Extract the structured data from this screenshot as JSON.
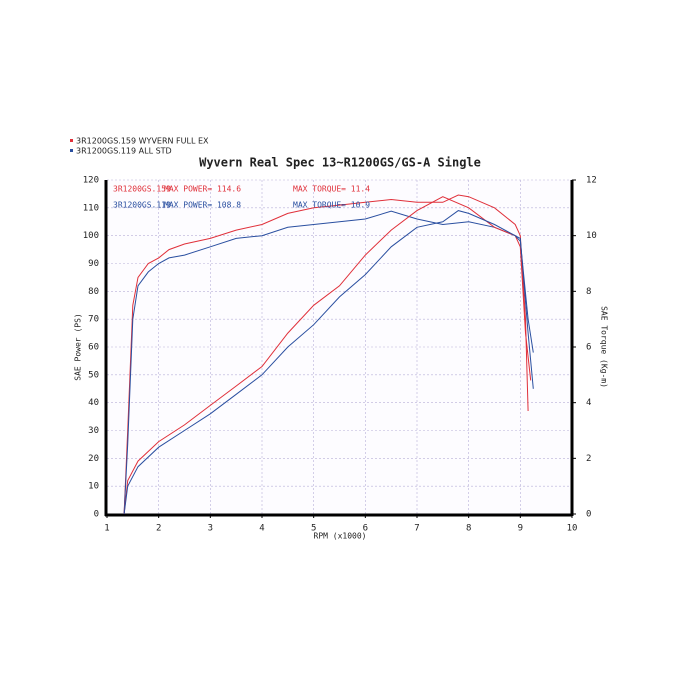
{
  "chart_data": {
    "type": "line",
    "title": "Wyvern Real Spec  13~R1200GS/GS-A  Single",
    "x_label": "RPM (x1000)",
    "y_label": "SAE Power (PS)",
    "y2_label": "SAE Torque (Kg-m)",
    "xlim": [
      1,
      10
    ],
    "xticks": [
      1,
      2,
      3,
      4,
      5,
      6,
      7,
      8,
      9,
      10
    ],
    "ylim": [
      0,
      120
    ],
    "yticks": [
      0,
      10,
      20,
      30,
      40,
      50,
      60,
      70,
      80,
      90,
      100,
      110,
      120
    ],
    "y2lim": [
      0,
      12
    ],
    "y2ticks": [
      0,
      2,
      4,
      6,
      8,
      10,
      12
    ],
    "grid": true,
    "annotations": [
      {
        "text": "3R1200GS.159",
        "color": "#e0303a"
      },
      {
        "text": "MAX POWER= 114.6",
        "color": "#e0303a"
      },
      {
        "text": "MAX TORQUE= 11.4",
        "color": "#e0303a"
      },
      {
        "text": "3R1200GS.119",
        "color": "#2a4fa0"
      },
      {
        "text": "MAX POWER= 108.8",
        "color": "#2a4fa0"
      },
      {
        "text": "MAX TORQUE= 10.9",
        "color": "#2a4fa0"
      }
    ],
    "series": [
      {
        "name": "3R1200GS.159  WYVERN FULL EX",
        "color": "#e0303a",
        "x": [
          1.33,
          1.4,
          1.5,
          1.6,
          1.8,
          2.0,
          2.2,
          2.5,
          3.0,
          3.5,
          4.0,
          4.5,
          5.0,
          5.5,
          6.0,
          6.5,
          7.0,
          7.5,
          7.8,
          8.0,
          8.5,
          8.9,
          9.0,
          9.1,
          9.15
        ],
        "values": [
          0,
          30,
          75,
          85,
          90,
          92,
          95,
          97,
          99,
          102,
          104,
          108,
          110,
          111,
          112,
          113,
          112,
          112,
          114.6,
          114,
          110,
          104,
          100,
          70,
          37
        ]
      },
      {
        "name": "3R1200GS.119  ALL STD",
        "color": "#2a4fa0",
        "x": [
          1.33,
          1.4,
          1.5,
          1.6,
          1.8,
          2.0,
          2.2,
          2.5,
          3.0,
          3.5,
          4.0,
          4.5,
          5.0,
          5.5,
          6.0,
          6.5,
          7.0,
          7.5,
          8.0,
          8.5,
          8.9,
          9.0,
          9.15,
          9.25
        ],
        "values": [
          0,
          25,
          70,
          82,
          87,
          90,
          92,
          93,
          96,
          99,
          100,
          103,
          104,
          105,
          106,
          108.8,
          106,
          104,
          105,
          103,
          100,
          99,
          65,
          45
        ]
      },
      {
        "color": "#e0303a",
        "axis": "y2",
        "x": [
          1.33,
          1.4,
          1.6,
          2.0,
          2.5,
          3.0,
          3.5,
          4.0,
          4.5,
          5.0,
          5.5,
          6.0,
          6.5,
          7.0,
          7.5,
          8.0,
          8.5,
          8.9,
          9.0,
          9.1,
          9.2
        ],
        "values": [
          0,
          1.2,
          1.9,
          2.6,
          3.2,
          3.9,
          4.6,
          5.3,
          6.5,
          7.5,
          8.2,
          9.3,
          10.2,
          10.9,
          11.4,
          11.0,
          10.3,
          10.0,
          9.6,
          6.5,
          4.8
        ]
      },
      {
        "color": "#2a4fa0",
        "axis": "y2",
        "x": [
          1.33,
          1.4,
          1.6,
          2.0,
          2.5,
          3.0,
          3.5,
          4.0,
          4.5,
          5.0,
          5.5,
          6.0,
          6.5,
          7.0,
          7.5,
          7.8,
          8.0,
          8.5,
          8.9,
          9.0,
          9.15,
          9.25
        ],
        "values": [
          0,
          1.0,
          1.7,
          2.4,
          3.0,
          3.6,
          4.3,
          5.0,
          6.0,
          6.8,
          7.8,
          8.6,
          9.6,
          10.3,
          10.5,
          10.9,
          10.8,
          10.4,
          10.0,
          9.8,
          7.0,
          5.8
        ]
      }
    ]
  }
}
